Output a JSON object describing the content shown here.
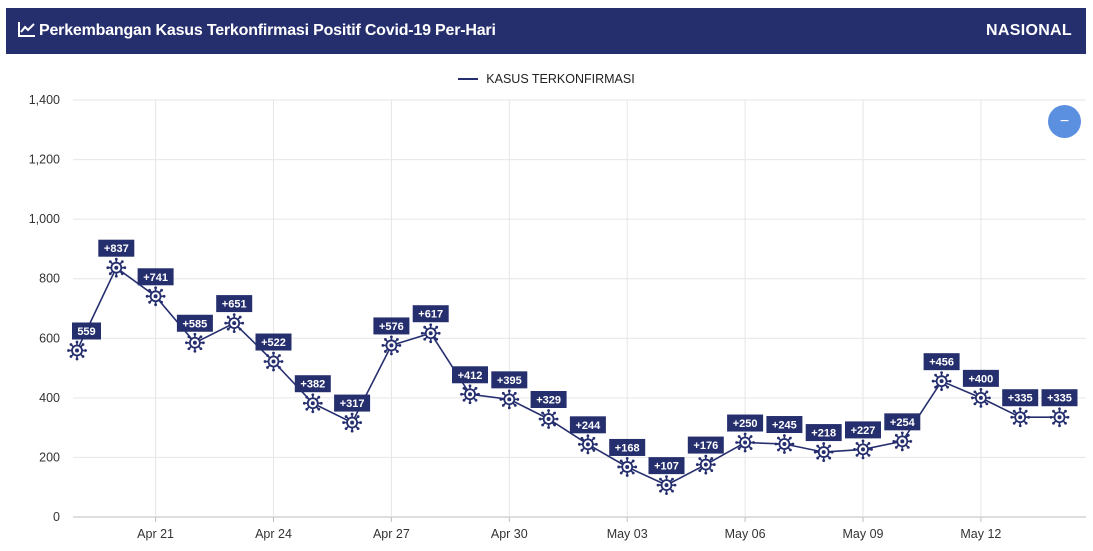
{
  "header": {
    "title": "Perkembangan Kasus Terkonfirmasi Positif Covid-19 Per-Hari",
    "scope": "NASIONAL",
    "icon": "line-chart-icon"
  },
  "zoom_button": {
    "icon": "minus-icon",
    "label": "−",
    "color": "#5b8fe0"
  },
  "colors": {
    "header_bg": "#262f6e",
    "series": "#262f6e",
    "label_bg": "#262f6e"
  },
  "chart_data": {
    "type": "line",
    "title": "Perkembangan Kasus Terkonfirmasi Positif Covid-19 Per-Hari",
    "legend_position": "top-center",
    "grid": true,
    "ylim": [
      0,
      1400
    ],
    "yticks": [
      "0",
      "200",
      "400",
      "600",
      "800",
      "1,000",
      "1,200",
      "1,400"
    ],
    "ytick_values": [
      0,
      200,
      400,
      600,
      800,
      1000,
      1200,
      1400
    ],
    "xticks": [
      "Apr 21",
      "Apr 24",
      "Apr 27",
      "Apr 30",
      "May 03",
      "May 06",
      "May 09",
      "May 12"
    ],
    "xtick_indices": [
      2,
      5,
      8,
      11,
      14,
      17,
      20,
      23
    ],
    "series": [
      {
        "name": "KASUS TERKONFIRMASI",
        "values": [
          559,
          837,
          741,
          585,
          651,
          522,
          382,
          317,
          576,
          617,
          412,
          395,
          329,
          244,
          168,
          107,
          176,
          250,
          245,
          218,
          227,
          254,
          456,
          400,
          335,
          335
        ],
        "labels": [
          "559",
          "+837",
          "+741",
          "+585",
          "+651",
          "+522",
          "+382",
          "+317",
          "+576",
          "+617",
          "+412",
          "+395",
          "+329",
          "+244",
          "+168",
          "+107",
          "+176",
          "+250",
          "+245",
          "+218",
          "+227",
          "+254",
          "+456",
          "+400",
          "+335",
          "+335"
        ]
      }
    ]
  }
}
